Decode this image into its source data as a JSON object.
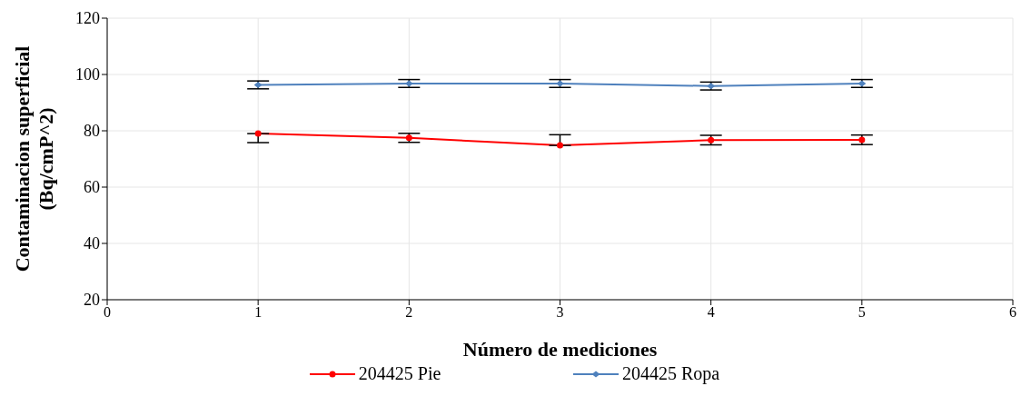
{
  "chart_data": {
    "type": "line",
    "xlabel": "Número de mediciones",
    "ylabel": "Contaminacion superficial\n(Bq/cmP^2)",
    "x": [
      1,
      2,
      3,
      4,
      5
    ],
    "series": [
      {
        "name": "204425 Pie",
        "color": "#ff0000",
        "marker": "circle",
        "values": [
          79,
          77.5,
          74.8,
          76.7,
          76.8
        ],
        "errors": [
          [
            75.8,
            79
          ],
          [
            75.9,
            79.1
          ],
          [
            74.8,
            78.6
          ],
          [
            75,
            78.4
          ],
          [
            75.1,
            78.5
          ]
        ]
      },
      {
        "name": "204425 Ropa",
        "color": "#4f81bd",
        "marker": "diamond",
        "values": [
          96.3,
          96.8,
          96.8,
          95.9,
          96.8
        ],
        "errors": [
          [
            94.9,
            97.7
          ],
          [
            95.4,
            98.2
          ],
          [
            95.4,
            98.2
          ],
          [
            94.5,
            97.3
          ],
          [
            95.4,
            98.2
          ]
        ]
      }
    ],
    "xlim": [
      0,
      6
    ],
    "xticks": [
      0,
      1,
      2,
      3,
      4,
      5,
      6
    ],
    "ylim": [
      20,
      120
    ],
    "yticks": [
      20,
      40,
      60,
      80,
      100,
      120
    ],
    "grid": true,
    "legend": "bottom"
  }
}
